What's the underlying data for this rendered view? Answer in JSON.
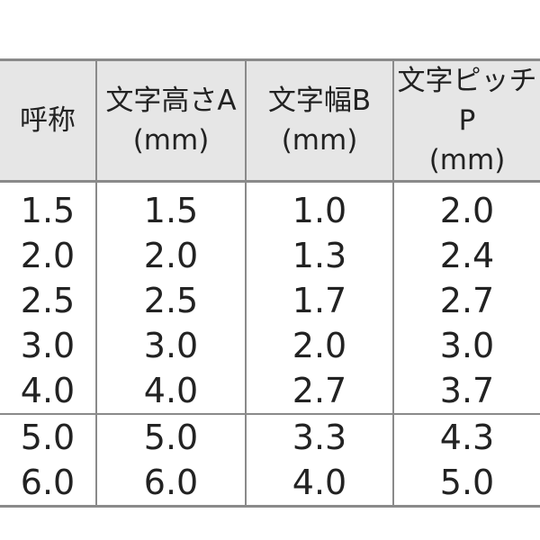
{
  "table": {
    "header": [
      {
        "title": "呼称"
      },
      {
        "title": "文字高さA",
        "unit": "(mm)"
      },
      {
        "title": "文字幅B",
        "unit": "(mm)"
      },
      {
        "title": "文字ピッチP",
        "unit": "(mm)"
      }
    ],
    "rows": [
      [
        "1.5",
        "1.5",
        "1.0",
        "2.0"
      ],
      [
        "2.0",
        "2.0",
        "1.3",
        "2.4"
      ],
      [
        "2.5",
        "2.5",
        "1.7",
        "2.7"
      ],
      [
        "3.0",
        "3.0",
        "2.0",
        "3.0"
      ],
      [
        "4.0",
        "4.0",
        "2.7",
        "3.7"
      ],
      [
        "5.0",
        "5.0",
        "3.3",
        "4.3"
      ],
      [
        "6.0",
        "6.0",
        "4.0",
        "5.0"
      ]
    ]
  }
}
